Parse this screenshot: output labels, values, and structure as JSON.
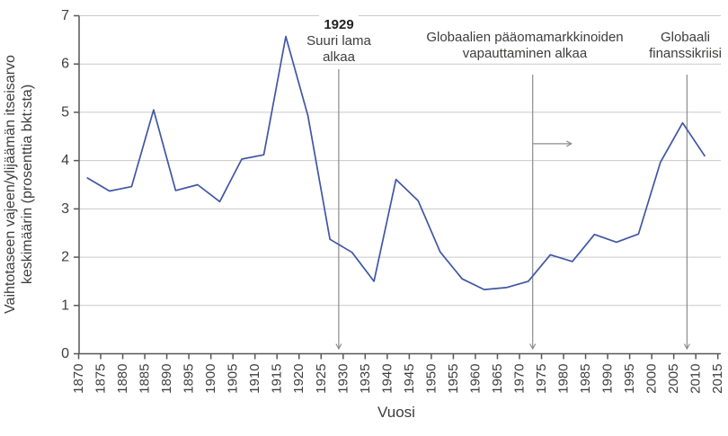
{
  "chart_data": {
    "type": "line",
    "title": "",
    "xlabel": "Vuosi",
    "ylabel": [
      "Vaihtotaseen vajeen/ylijäämän itseisarvo",
      "keskimäärin (prosenttia bkt:sta)"
    ],
    "x": [
      1872,
      1877,
      1882,
      1887,
      1892,
      1897,
      1902,
      1907,
      1912,
      1917,
      1922,
      1927,
      1932,
      1937,
      1942,
      1947,
      1952,
      1957,
      1962,
      1967,
      1972,
      1977,
      1982,
      1987,
      1992,
      1997,
      2002,
      2007,
      2012
    ],
    "values": [
      3.64,
      3.37,
      3.46,
      5.05,
      3.38,
      3.5,
      3.15,
      4.03,
      4.12,
      6.57,
      4.93,
      2.37,
      2.1,
      1.5,
      3.61,
      3.17,
      2.11,
      1.55,
      1.33,
      1.37,
      1.5,
      2.05,
      1.91,
      2.47,
      2.31,
      2.48,
      3.97,
      4.78,
      4.1
    ],
    "xlim": [
      1870,
      2015
    ],
    "ylim": [
      0,
      7
    ],
    "x_ticks": [
      "1870",
      "1875",
      "1880",
      "1885",
      "1890",
      "1895",
      "1900",
      "1905",
      "1910",
      "1915",
      "1920",
      "1925",
      "1930",
      "1935",
      "1940",
      "1945",
      "1950",
      "1955",
      "1960",
      "1965",
      "1970",
      "1975",
      "1980",
      "1985",
      "1990",
      "1995",
      "2000",
      "2005",
      "2010",
      "2015"
    ],
    "y_ticks": [
      0,
      1,
      2,
      3,
      4,
      5,
      6,
      7
    ],
    "grid": "horizontal",
    "legend": "none",
    "annotations": [
      {
        "title": "1929",
        "line1": "Suuri lama",
        "line2": "alkaa",
        "arrow_year": 1929
      },
      {
        "title": "",
        "line1": "Globaalien pääomamarkkinoiden",
        "line2": "vapauttaminen alkaa",
        "arrow_year": 1973,
        "h_arrow": {
          "value": 4.35,
          "from_year": 1973,
          "to_year": 1983
        }
      },
      {
        "title": "",
        "line1": "Globaali",
        "line2": "finanssikriisi",
        "arrow_year": 2008
      }
    ],
    "colors": {
      "line": "#4156a4",
      "grid": "#c9c9c9",
      "axis": "#565759",
      "arrow": "#8a8c8e",
      "text": "#3d3d3c"
    }
  }
}
